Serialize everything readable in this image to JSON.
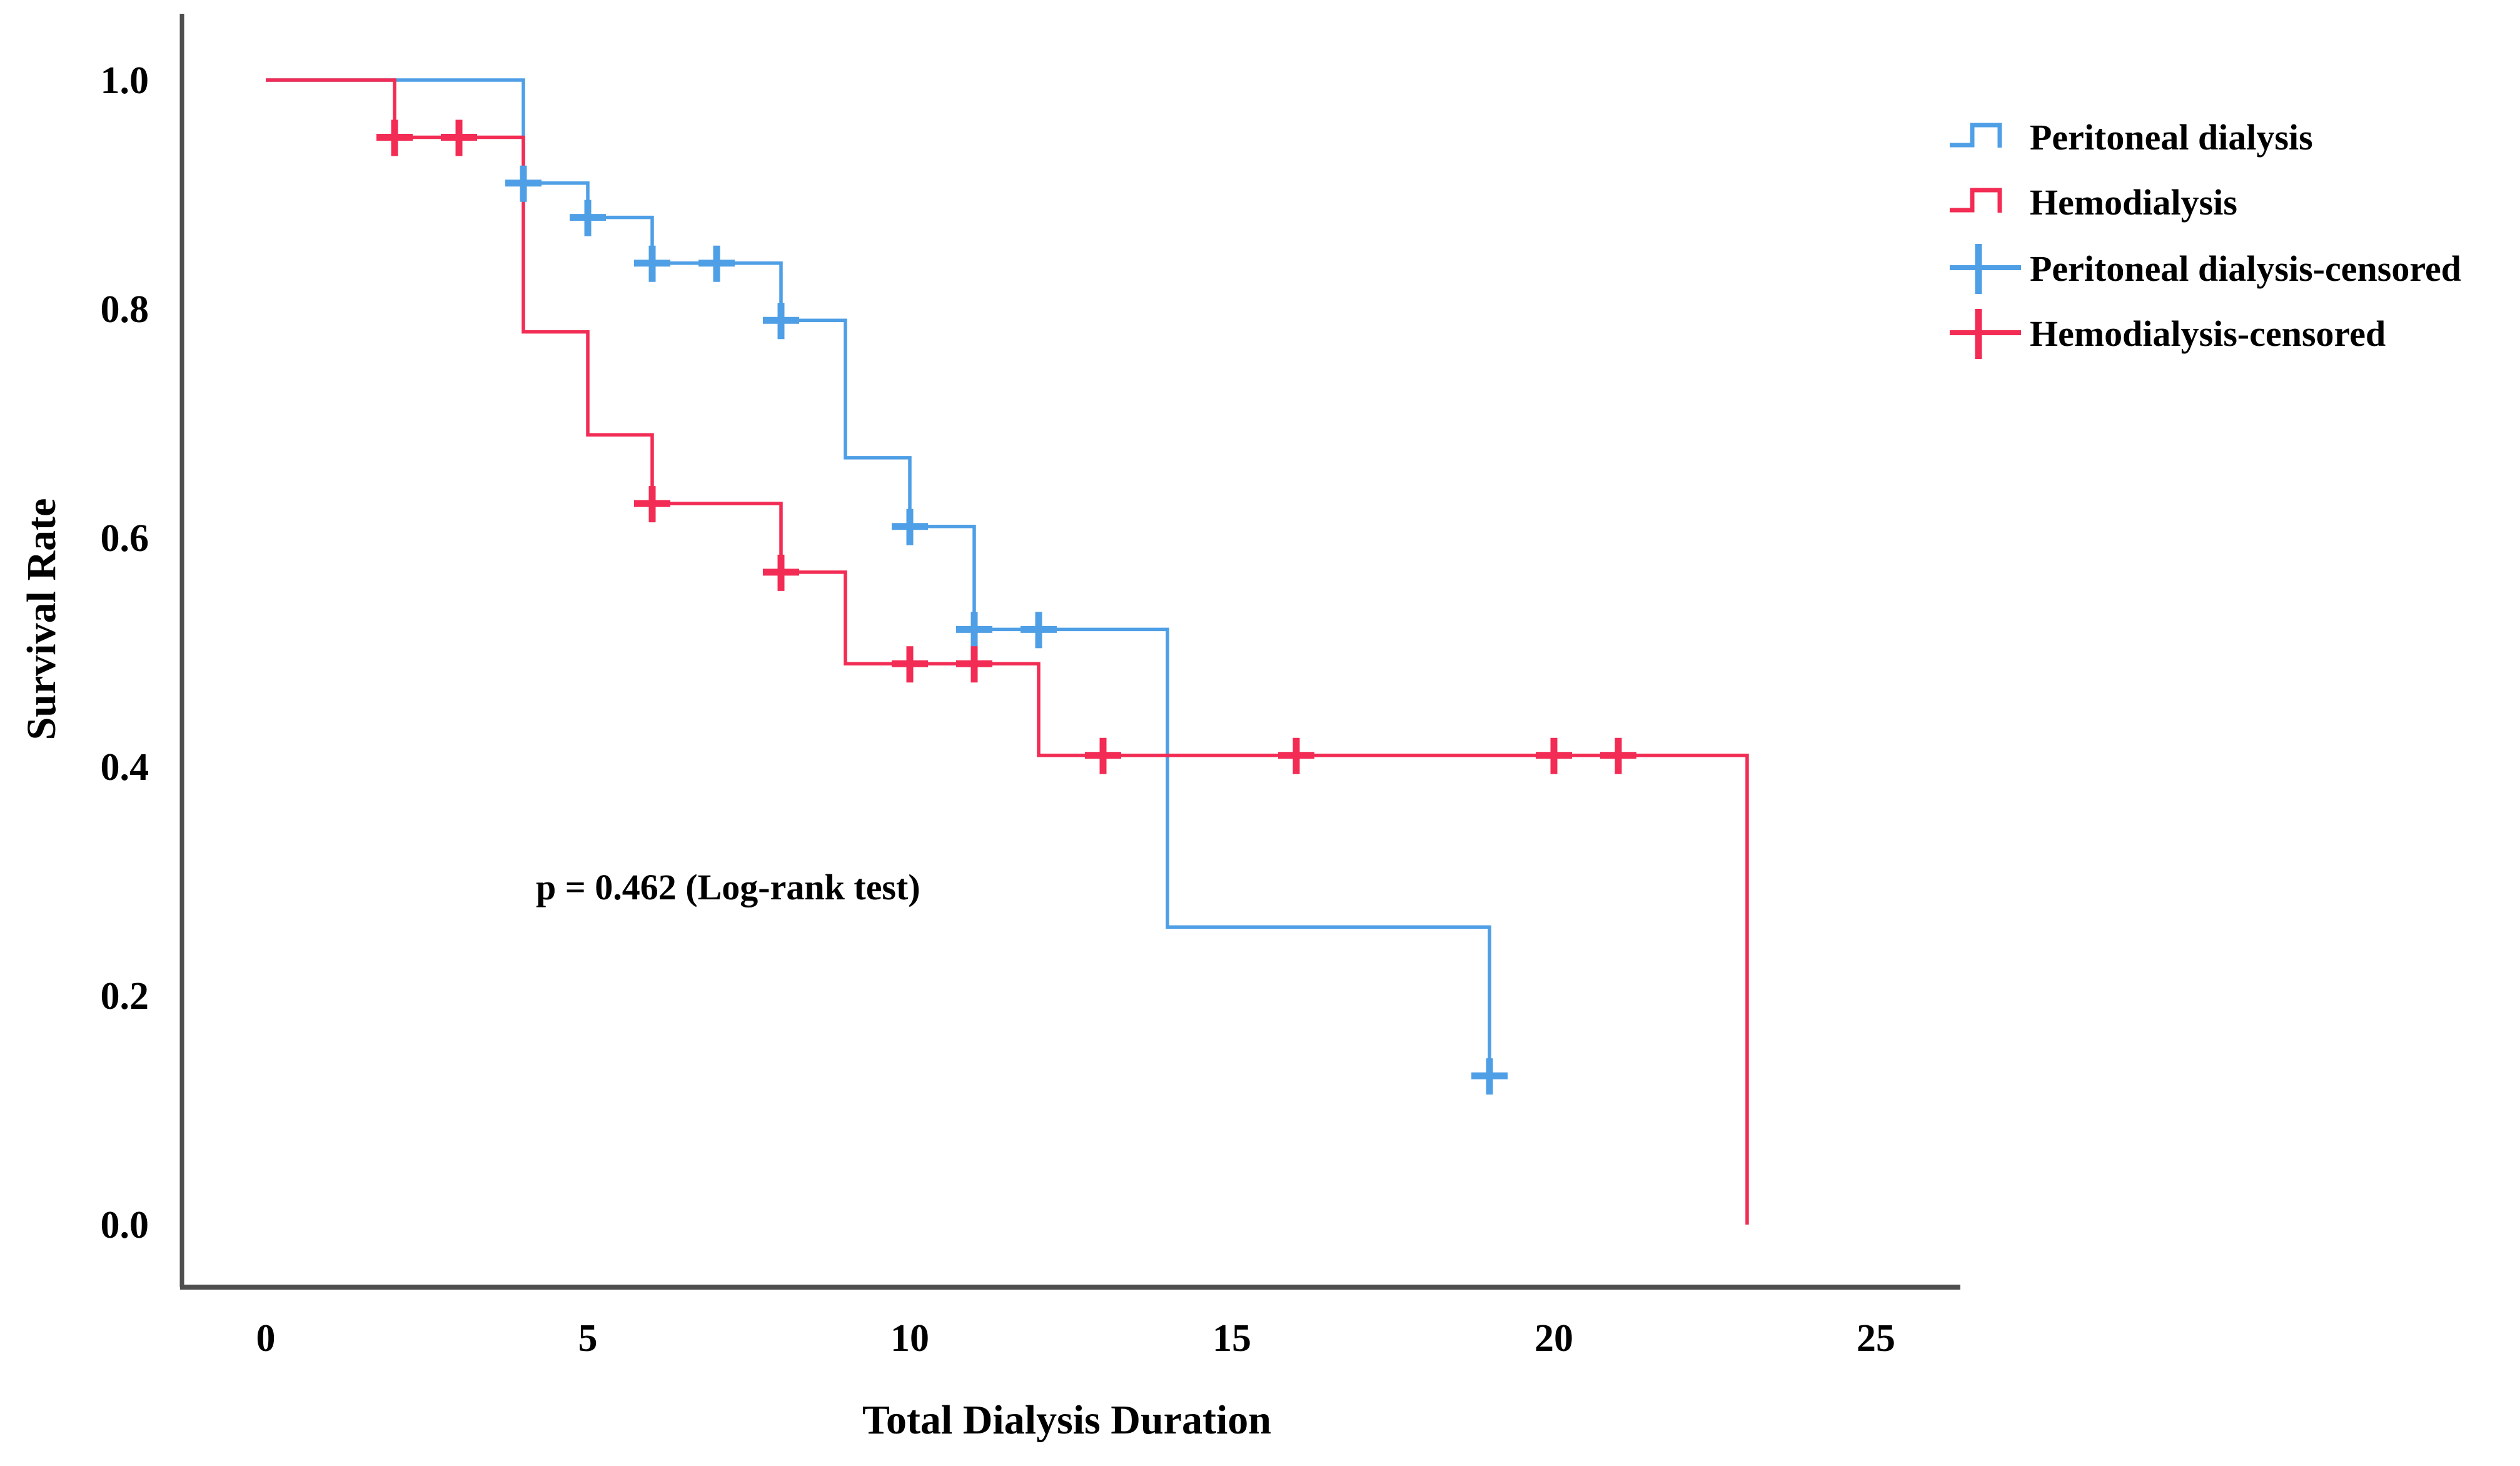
{
  "chart": {
    "background": "#ffffff",
    "axis_color": "#4e4e4e",
    "text_color": "#000000",
    "y_axis_label": "Survival Rate",
    "x_axis_label": "Total Dialysis Duration",
    "annotation": "p = 0.462 (Log-rank test)"
  },
  "chart_data": {
    "type": "line",
    "subtype": "kaplan-meier-step",
    "title": "",
    "xlabel": "Total Dialysis Duration",
    "ylabel": "Survival Rate",
    "xlim": [
      0,
      25
    ],
    "ylim": [
      0.0,
      1.0
    ],
    "xticks": [
      0,
      5,
      10,
      15,
      20,
      25
    ],
    "yticks": [
      1.0,
      0.8,
      0.6,
      0.4,
      0.2,
      0.0
    ],
    "grid": false,
    "legend_position": "right-top-outside",
    "annotation": "p = 0.462 (Log-rank test)",
    "series": [
      {
        "name": "Peritoneal dialysis",
        "color": "#4F9FE6",
        "steps": [
          [
            0,
            1.0
          ],
          [
            4,
            1.0
          ],
          [
            4,
            0.91
          ],
          [
            5,
            0.91
          ],
          [
            5,
            0.88
          ],
          [
            6,
            0.88
          ],
          [
            6,
            0.84
          ],
          [
            8,
            0.84
          ],
          [
            8,
            0.79
          ],
          [
            9,
            0.79
          ],
          [
            9,
            0.67
          ],
          [
            10,
            0.67
          ],
          [
            10,
            0.61
          ],
          [
            11,
            0.61
          ],
          [
            11,
            0.52
          ],
          [
            14,
            0.52
          ],
          [
            14,
            0.26
          ],
          [
            19,
            0.26
          ],
          [
            19,
            0.13
          ]
        ],
        "censored": [
          [
            4,
            0.91
          ],
          [
            5,
            0.88
          ],
          [
            6,
            0.84
          ],
          [
            7,
            0.84
          ],
          [
            8,
            0.79
          ],
          [
            10,
            0.61
          ],
          [
            11,
            0.52
          ],
          [
            12,
            0.52
          ],
          [
            19,
            0.13
          ]
        ]
      },
      {
        "name": "Hemodialysis",
        "color": "#F22C54",
        "steps": [
          [
            0,
            1.0
          ],
          [
            2,
            1.0
          ],
          [
            2,
            0.95
          ],
          [
            4,
            0.95
          ],
          [
            4,
            0.78
          ],
          [
            5,
            0.78
          ],
          [
            5,
            0.69
          ],
          [
            6,
            0.69
          ],
          [
            6,
            0.63
          ],
          [
            8,
            0.63
          ],
          [
            8,
            0.57
          ],
          [
            9,
            0.57
          ],
          [
            9,
            0.49
          ],
          [
            12,
            0.49
          ],
          [
            12,
            0.41
          ],
          [
            23,
            0.41
          ],
          [
            23,
            0.0
          ]
        ],
        "censored": [
          [
            2,
            0.95
          ],
          [
            3,
            0.95
          ],
          [
            6,
            0.63
          ],
          [
            8,
            0.57
          ],
          [
            10,
            0.49
          ],
          [
            11,
            0.49
          ],
          [
            13,
            0.41
          ],
          [
            16,
            0.41
          ],
          [
            20,
            0.41
          ],
          [
            21,
            0.41
          ]
        ]
      }
    ],
    "legend": [
      {
        "label": "Peritoneal dialysis",
        "color": "#4F9FE6",
        "glyph": "step-line"
      },
      {
        "label": "Hemodialysis",
        "color": "#F22C54",
        "glyph": "step-line"
      },
      {
        "label": "Peritoneal dialysis-censored",
        "color": "#4F9FE6",
        "glyph": "censor-plus"
      },
      {
        "label": "Hemodialysis-censored",
        "color": "#F22C54",
        "glyph": "censor-plus"
      }
    ]
  }
}
